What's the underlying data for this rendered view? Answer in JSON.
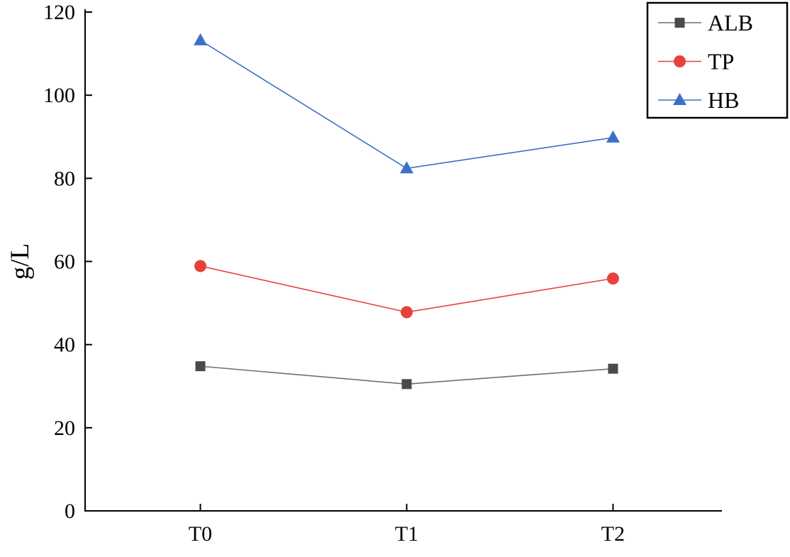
{
  "chart_data": {
    "type": "line",
    "title": "",
    "xlabel": "",
    "ylabel": "g/L",
    "ylim": [
      0,
      120
    ],
    "yticks": [
      0,
      20,
      40,
      60,
      80,
      100,
      120
    ],
    "categories": [
      "T0",
      "T1",
      "T2"
    ],
    "series": [
      {
        "name": "ALB",
        "marker": "square",
        "line_color": "#6f6f6f",
        "marker_color": "#4a4a4a",
        "values": [
          34.8,
          30.5,
          34.2
        ]
      },
      {
        "name": "TP",
        "marker": "circle",
        "line_color": "#e8413c",
        "marker_color": "#e8413c",
        "values": [
          58.9,
          47.8,
          55.9
        ]
      },
      {
        "name": "HB",
        "marker": "triangle",
        "line_color": "#3d6fc9",
        "marker_color": "#3d6fc9",
        "values": [
          113.2,
          82.4,
          89.8
        ]
      }
    ],
    "legend": {
      "position": "top-right",
      "labels": [
        "ALB",
        "TP",
        "HB"
      ]
    },
    "grid": false,
    "axis_color": "#000000"
  }
}
